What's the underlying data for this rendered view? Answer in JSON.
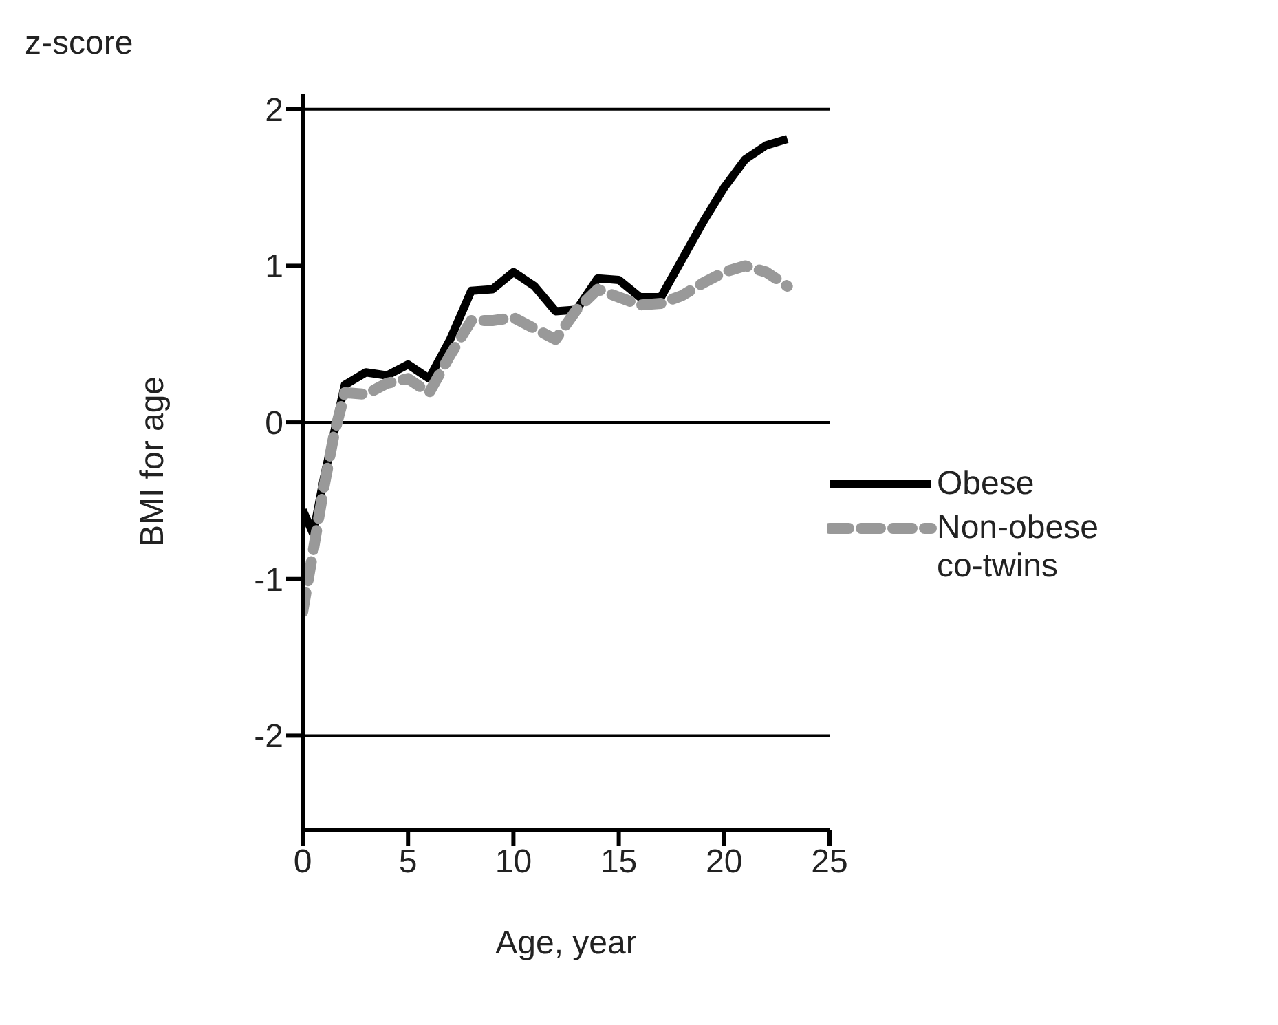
{
  "chart_data": {
    "type": "line",
    "ylabel": "BMI for age",
    "xlabel": "Age, year",
    "annotations": [
      "z-score"
    ],
    "xlim": [
      0,
      25
    ],
    "xticks": [
      0,
      5,
      10,
      15,
      20,
      25
    ],
    "ylim": [
      -2.6,
      2.1
    ],
    "yticks": [
      -2,
      -1,
      0,
      1,
      2
    ],
    "grid": false,
    "legend": "right",
    "marker": "none",
    "ref_lines": [
      {
        "axis": "y",
        "value": 2,
        "color": "#000000"
      },
      {
        "axis": "y",
        "value": 0,
        "color": "#000000"
      },
      {
        "axis": "y",
        "value": -2,
        "color": "#000000"
      }
    ],
    "series": [
      {
        "name": "Obese",
        "color": "#000000",
        "line_style": "solid",
        "x": [
          0,
          0.5,
          1,
          2,
          3,
          4,
          5,
          6,
          7,
          8,
          9,
          10,
          11,
          12,
          13,
          14,
          15,
          16,
          17,
          18,
          19,
          20,
          21,
          22,
          23
        ],
        "values": [
          -0.56,
          -0.71,
          -0.36,
          0.24,
          0.32,
          0.3,
          0.37,
          0.28,
          0.53,
          0.84,
          0.85,
          0.96,
          0.87,
          0.71,
          0.72,
          0.92,
          0.91,
          0.8,
          0.8,
          1.04,
          1.28,
          1.5,
          1.68,
          1.77,
          1.81
        ]
      },
      {
        "name": "Non-obese co-twins",
        "color": "#999999",
        "line_style": "dashed",
        "x": [
          0,
          0.5,
          1,
          1.5,
          2,
          3,
          4,
          5,
          6,
          7,
          8,
          9,
          10,
          11,
          12,
          13,
          14,
          15,
          16,
          17,
          18,
          19,
          20,
          21,
          22,
          23
        ],
        "values": [
          -1.21,
          -0.82,
          -0.42,
          -0.07,
          0.19,
          0.18,
          0.25,
          0.28,
          0.19,
          0.43,
          0.65,
          0.65,
          0.67,
          0.6,
          0.53,
          0.72,
          0.85,
          0.8,
          0.75,
          0.76,
          0.81,
          0.89,
          0.96,
          1.0,
          0.96,
          0.87
        ]
      }
    ]
  }
}
